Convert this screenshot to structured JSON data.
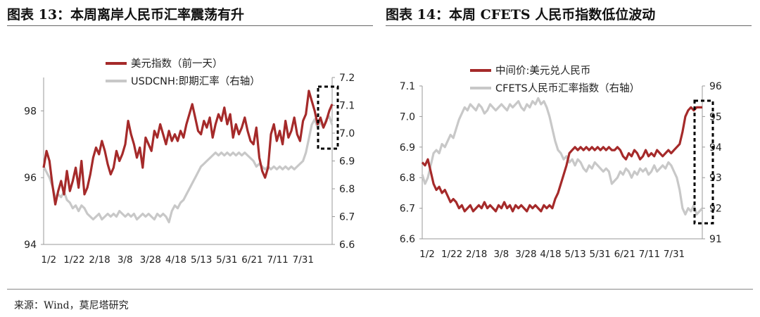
{
  "titles": {
    "left": "图表 13：本周离岸人民币汇率震荡有升",
    "right": "图表 14：本周 CFETS 人民币指数低位波动"
  },
  "source": "来源：Wind，莫尼塔研究",
  "colors": {
    "primary": "#a52a2a",
    "secondary": "#c8c8c8",
    "box": "#000000"
  },
  "chart_data": [
    {
      "type": "line",
      "x_ticks": [
        "1/2",
        "1/22",
        "2/18",
        "3/8",
        "3/28",
        "4/18",
        "5/13",
        "5/31",
        "6/21",
        "7/11",
        "7/31"
      ],
      "ylim_left": [
        94,
        99
      ],
      "yticks_left": [
        94,
        96,
        98
      ],
      "ylim_right": [
        6.6,
        7.2
      ],
      "yticks_right": [
        "6.6",
        "6.7",
        "6.8",
        "6.9",
        "7.0",
        "7.1",
        "7.2"
      ],
      "legend_position": "top",
      "series": [
        {
          "name": "美元指数（前一天）",
          "axis": "left",
          "values": [
            96.3,
            96.8,
            96.5,
            95.8,
            95.2,
            95.6,
            95.9,
            95.5,
            96.2,
            95.6,
            95.9,
            96.3,
            95.7,
            96.5,
            95.5,
            95.7,
            96.1,
            96.6,
            96.9,
            96.7,
            97.1,
            96.8,
            96.4,
            96.1,
            96.3,
            96.8,
            96.5,
            96.7,
            97.0,
            97.7,
            97.3,
            97.0,
            96.6,
            96.9,
            96.3,
            97.2,
            97.0,
            96.8,
            97.4,
            97.2,
            97.6,
            97.3,
            97.0,
            97.4,
            97.1,
            97.3,
            97.1,
            97.4,
            97.2,
            97.6,
            97.9,
            98.2,
            97.8,
            97.4,
            97.3,
            97.7,
            97.5,
            97.8,
            97.2,
            97.6,
            97.9,
            97.7,
            98.1,
            97.6,
            97.9,
            97.2,
            97.6,
            97.3,
            97.5,
            97.8,
            97.4,
            97.1,
            97.0,
            97.5,
            96.6,
            96.2,
            96.0,
            96.3,
            97.3,
            97.6,
            97.1,
            97.4,
            97.0,
            97.7,
            97.2,
            97.4,
            97.8,
            97.3,
            97.1,
            97.7,
            97.9,
            98.6,
            98.3,
            98.0,
            97.6,
            97.8,
            97.5,
            97.7,
            98.0,
            98.2
          ]
        },
        {
          "name": "USDCNH:即期汇率（右轴）",
          "axis": "right",
          "values": [
            6.88,
            6.86,
            6.84,
            6.81,
            6.77,
            6.78,
            6.77,
            6.79,
            6.76,
            6.75,
            6.73,
            6.74,
            6.72,
            6.74,
            6.73,
            6.71,
            6.7,
            6.69,
            6.7,
            6.71,
            6.69,
            6.7,
            6.71,
            6.7,
            6.71,
            6.7,
            6.72,
            6.71,
            6.7,
            6.71,
            6.7,
            6.71,
            6.69,
            6.7,
            6.71,
            6.7,
            6.71,
            6.7,
            6.69,
            6.71,
            6.7,
            6.71,
            6.7,
            6.68,
            6.72,
            6.74,
            6.73,
            6.75,
            6.76,
            6.78,
            6.8,
            6.82,
            6.84,
            6.86,
            6.88,
            6.89,
            6.9,
            6.91,
            6.92,
            6.93,
            6.92,
            6.93,
            6.92,
            6.93,
            6.92,
            6.93,
            6.92,
            6.93,
            6.92,
            6.93,
            6.92,
            6.91,
            6.9,
            6.88,
            6.89,
            6.88,
            6.87,
            6.88,
            6.87,
            6.88,
            6.87,
            6.88,
            6.87,
            6.88,
            6.87,
            6.88,
            6.87,
            6.88,
            6.89,
            6.9,
            6.93,
            6.98,
            7.03,
            7.05,
            7.02,
            7.04,
            7.02,
            7.05,
            7.06,
            7.03
          ]
        }
      ]
    },
    {
      "type": "line",
      "x_ticks": [
        "1/2",
        "1/22",
        "2/18",
        "3/8",
        "3/28",
        "4/18",
        "5/13",
        "5/31",
        "6/21",
        "7/11",
        "7/31"
      ],
      "ylim_left": [
        6.6,
        7.1
      ],
      "yticks_left": [
        "6.6",
        "6.7",
        "6.8",
        "6.9",
        "7.0",
        "7.1"
      ],
      "ylim_right": [
        91,
        96
      ],
      "yticks_right": [
        91,
        92,
        93,
        94,
        95,
        96
      ],
      "legend_position": "top",
      "series": [
        {
          "name": "中间价:美元兑人民币",
          "axis": "left",
          "values": [
            6.85,
            6.84,
            6.86,
            6.82,
            6.78,
            6.76,
            6.77,
            6.75,
            6.76,
            6.74,
            6.72,
            6.73,
            6.72,
            6.7,
            6.71,
            6.69,
            6.7,
            6.71,
            6.69,
            6.7,
            6.71,
            6.7,
            6.72,
            6.7,
            6.71,
            6.7,
            6.69,
            6.71,
            6.7,
            6.72,
            6.7,
            6.71,
            6.69,
            6.71,
            6.7,
            6.71,
            6.7,
            6.69,
            6.71,
            6.7,
            6.71,
            6.7,
            6.69,
            6.71,
            6.7,
            6.71,
            6.7,
            6.73,
            6.75,
            6.78,
            6.81,
            6.84,
            6.88,
            6.89,
            6.9,
            6.89,
            6.9,
            6.89,
            6.9,
            6.89,
            6.9,
            6.89,
            6.9,
            6.89,
            6.9,
            6.89,
            6.9,
            6.89,
            6.89,
            6.9,
            6.89,
            6.87,
            6.86,
            6.88,
            6.87,
            6.89,
            6.88,
            6.86,
            6.87,
            6.89,
            6.87,
            6.88,
            6.87,
            6.89,
            6.88,
            6.87,
            6.88,
            6.89,
            6.88,
            6.89,
            6.9,
            6.91,
            6.95,
            7.0,
            7.02,
            7.03,
            7.02,
            7.03,
            7.03,
            7.03
          ]
        },
        {
          "name": "CFETS人民币汇率指数（右轴）",
          "axis": "right",
          "values": [
            93.1,
            92.8,
            93.0,
            93.4,
            93.8,
            93.9,
            93.8,
            94.1,
            94.0,
            94.2,
            94.4,
            94.3,
            94.6,
            94.9,
            95.1,
            95.3,
            95.2,
            95.4,
            95.3,
            95.2,
            95.4,
            95.3,
            95.1,
            95.2,
            95.4,
            95.3,
            95.2,
            95.3,
            95.4,
            95.3,
            95.2,
            95.4,
            95.3,
            95.4,
            95.5,
            95.3,
            95.2,
            95.4,
            95.3,
            95.5,
            95.4,
            95.6,
            95.4,
            95.5,
            95.3,
            95.0,
            94.6,
            94.2,
            93.9,
            93.8,
            93.6,
            93.7,
            93.5,
            93.6,
            93.4,
            93.6,
            93.5,
            93.3,
            93.2,
            93.4,
            93.3,
            93.5,
            93.4,
            93.3,
            93.2,
            93.3,
            93.2,
            92.8,
            92.9,
            93.0,
            93.2,
            93.1,
            93.3,
            93.2,
            93.0,
            93.2,
            93.1,
            93.3,
            93.2,
            93.3,
            93.1,
            93.2,
            93.4,
            93.2,
            93.3,
            93.4,
            93.3,
            93.5,
            93.4,
            93.2,
            93.0,
            92.6,
            92.0,
            91.8,
            92.0,
            91.9,
            92.1,
            91.8,
            91.9,
            92.0
          ]
        }
      ]
    }
  ]
}
